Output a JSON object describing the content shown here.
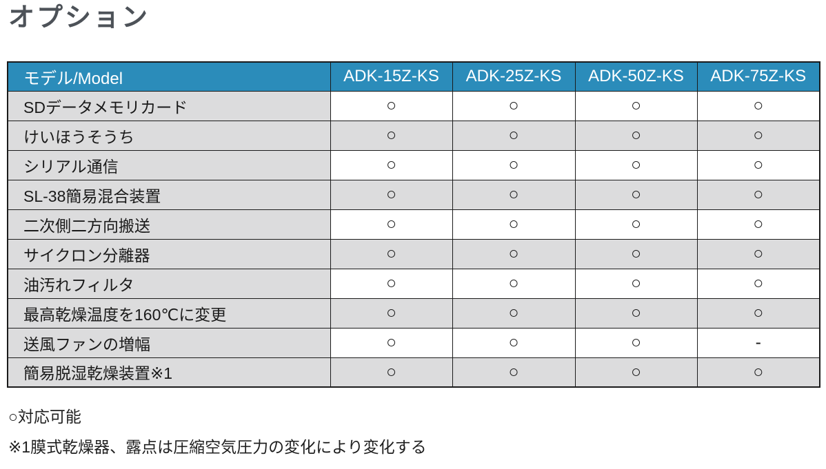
{
  "page_title": "オプション",
  "table": {
    "header": {
      "model_label": "モデル/Model",
      "columns": [
        "ADK-15Z-KS",
        "ADK-25Z-KS",
        "ADK-50Z-KS",
        "ADK-75Z-KS"
      ]
    },
    "rows": [
      {
        "label": "SDデータメモリカード",
        "values": [
          "○",
          "○",
          "○",
          "○"
        ]
      },
      {
        "label": "けいほうそうち",
        "values": [
          "○",
          "○",
          "○",
          "○"
        ]
      },
      {
        "label": "シリアル通信",
        "values": [
          "○",
          "○",
          "○",
          "○"
        ]
      },
      {
        "label": "SL-38簡易混合装置",
        "values": [
          "○",
          "○",
          "○",
          "○"
        ]
      },
      {
        "label": "二次側二方向搬送",
        "values": [
          "○",
          "○",
          "○",
          "○"
        ]
      },
      {
        "label": "サイクロン分離器",
        "values": [
          "○",
          "○",
          "○",
          "○"
        ]
      },
      {
        "label": "油汚れフィルタ",
        "values": [
          "○",
          "○",
          "○",
          "○"
        ]
      },
      {
        "label": "最高乾燥温度を160℃に変更",
        "values": [
          "○",
          "○",
          "○",
          "○"
        ]
      },
      {
        "label": "送風ファンの増幅",
        "values": [
          "○",
          "○",
          "○",
          "-"
        ]
      },
      {
        "label": "簡易脱湿乾燥装置※1",
        "values": [
          "○",
          "○",
          "○",
          "○"
        ]
      }
    ]
  },
  "legend": {
    "available": "○対応可能",
    "footnote": "※1膜式乾燥器、露点は圧縮空気圧力の変化により変化する"
  },
  "marks": {
    "available": "○",
    "not_available": "-"
  },
  "colors": {
    "header_bg": "#2b8cba",
    "header_text": "#ffffff",
    "alt_row_bg": "#dcdcdd",
    "border": "#1a1a1a",
    "title_text": "#4d5258"
  }
}
